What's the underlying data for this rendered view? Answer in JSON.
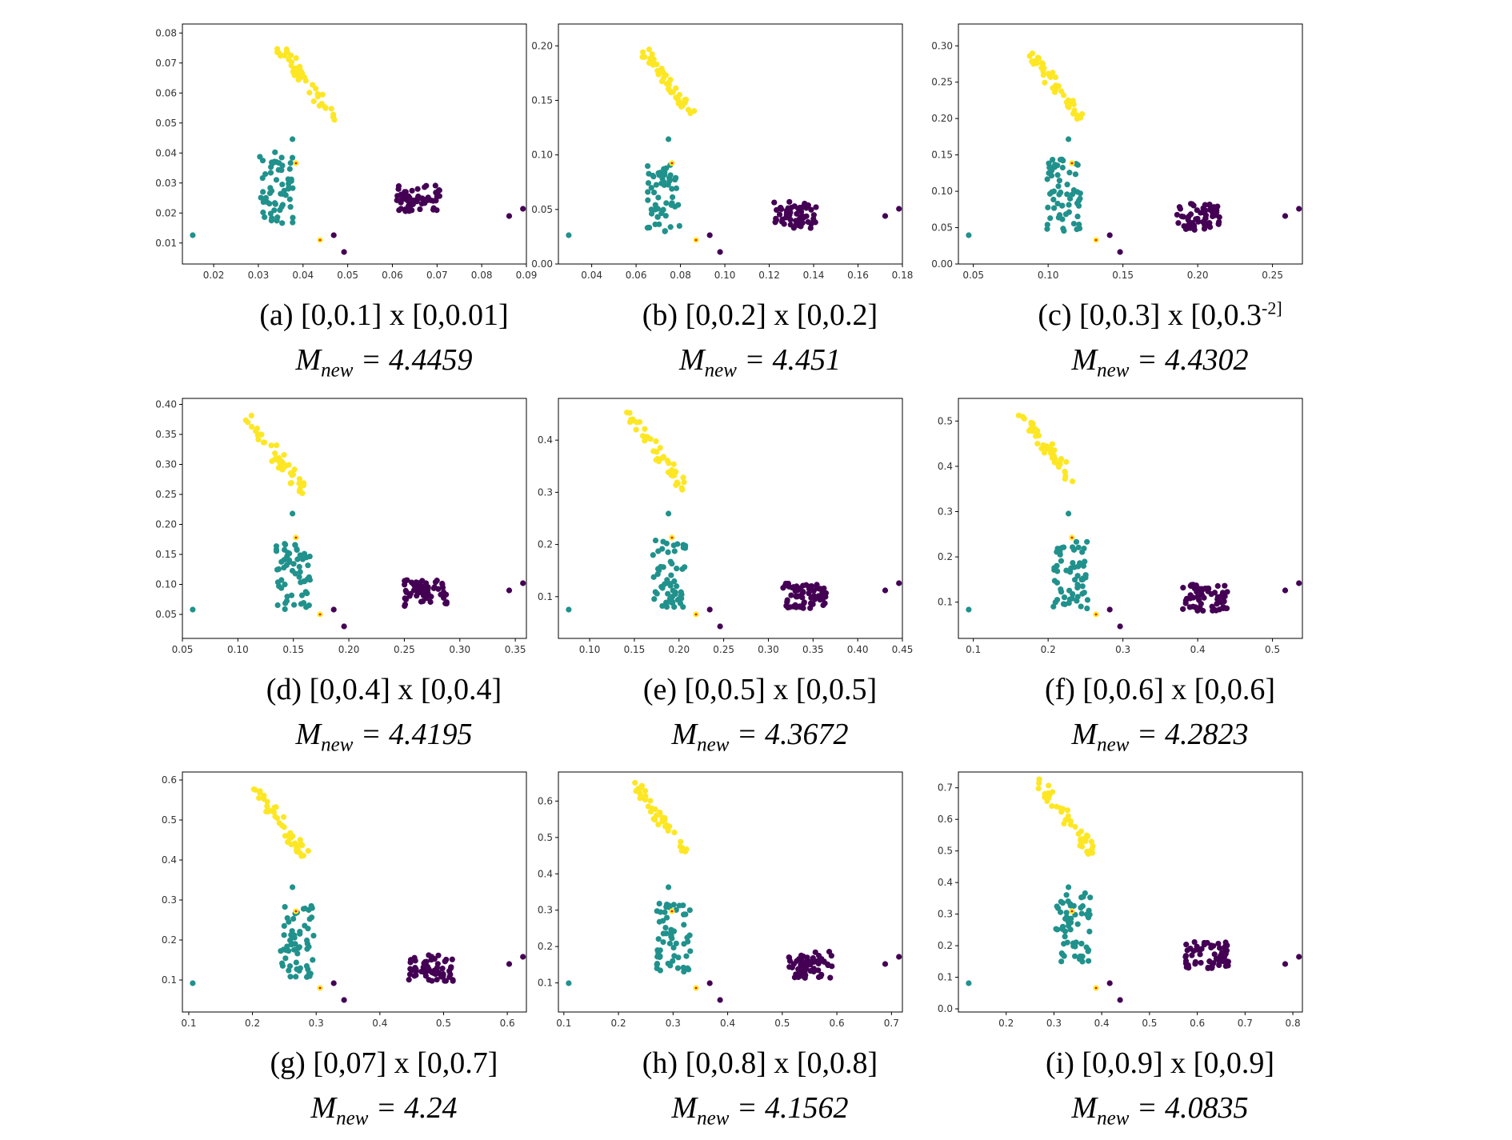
{
  "colors": {
    "yellow": "#fde725",
    "teal": "#21918c",
    "purple": "#440154",
    "red": "#ff0000",
    "frame": "#000000"
  },
  "panels": [
    {
      "label": "(a)",
      "interval": "[0,0.1] x [0,0.01]",
      "superscript": "",
      "m_label": "M",
      "m_sub": "new",
      "m_value": "= 4.4459",
      "xticks": [
        "0.02",
        "0.03",
        "0.04",
        "0.05",
        "0.06",
        "0.07",
        "0.08",
        "0.09"
      ],
      "yticks": [
        "0.01",
        "0.02",
        "0.03",
        "0.04",
        "0.05",
        "0.06",
        "0.07",
        "0.08"
      ]
    },
    {
      "label": "(b)",
      "interval": "[0,0.2] x [0,0.2]",
      "superscript": "",
      "m_label": "M",
      "m_sub": "new",
      "m_value": "= 4.451",
      "xticks": [
        "0.04",
        "0.06",
        "0.08",
        "0.10",
        "0.12",
        "0.14",
        "0.16",
        "0.18"
      ],
      "yticks": [
        "0.00",
        "0.05",
        "0.10",
        "0.15",
        "0.20"
      ]
    },
    {
      "label": "(c)",
      "interval": "[0,0.3] x [0,0.3",
      "superscript": "-2]",
      "m_label": "M",
      "m_sub": "new",
      "m_value": "= 4.4302",
      "xticks": [
        "0.05",
        "0.10",
        "0.15",
        "0.20",
        "0.25"
      ],
      "yticks": [
        "0.00",
        "0.05",
        "0.10",
        "0.15",
        "0.20",
        "0.25",
        "0.30"
      ]
    },
    {
      "label": "(d)",
      "interval": "[0,0.4] x [0,0.4]",
      "superscript": "",
      "m_label": "M",
      "m_sub": "new",
      "m_value": "= 4.4195",
      "xticks": [
        "0.05",
        "0.10",
        "0.15",
        "0.20",
        "0.25",
        "0.30",
        "0.35"
      ],
      "yticks": [
        "0.05",
        "0.10",
        "0.15",
        "0.20",
        "0.25",
        "0.30",
        "0.35",
        "0.40"
      ]
    },
    {
      "label": "(e)",
      "interval": "[0,0.5] x [0,0.5]",
      "superscript": "",
      "m_label": "M",
      "m_sub": "new",
      "m_value": "= 4.3672",
      "xticks": [
        "0.10",
        "0.15",
        "0.20",
        "0.25",
        "0.30",
        "0.35",
        "0.40",
        "0.45"
      ],
      "yticks": [
        "0.1",
        "0.2",
        "0.3",
        "0.4"
      ]
    },
    {
      "label": "(f)",
      "interval": "[0,0.6] x [0,0.6]",
      "superscript": "",
      "m_label": "M",
      "m_sub": "new",
      "m_value": "= 4.2823",
      "xticks": [
        "0.1",
        "0.2",
        "0.3",
        "0.4",
        "0.5"
      ],
      "yticks": [
        "0.1",
        "0.2",
        "0.3",
        "0.4",
        "0.5"
      ]
    },
    {
      "label": "(g)",
      "interval": "[0,07] x [0,0.7]",
      "superscript": "",
      "m_label": "M",
      "m_sub": "new",
      "m_value": "= 4.24",
      "xticks": [
        "0.1",
        "0.2",
        "0.3",
        "0.4",
        "0.5",
        "0.6"
      ],
      "yticks": [
        "0.1",
        "0.2",
        "0.3",
        "0.4",
        "0.5",
        "0.6"
      ]
    },
    {
      "label": "(h)",
      "interval": "[0,0.8] x [0,0.8]",
      "superscript": "",
      "m_label": "M",
      "m_sub": "new",
      "m_value": "= 4.1562",
      "xticks": [
        "0.1",
        "0.2",
        "0.3",
        "0.4",
        "0.5",
        "0.6",
        "0.7"
      ],
      "yticks": [
        "0.1",
        "0.2",
        "0.3",
        "0.4",
        "0.5",
        "0.6"
      ]
    },
    {
      "label": "(i)",
      "interval": "[0,0.9] x [0,0.9]",
      "superscript": "",
      "m_label": "M",
      "m_sub": "new",
      "m_value": "= 4.0835",
      "xticks": [
        "0.2",
        "0.3",
        "0.4",
        "0.5",
        "0.6",
        "0.7",
        "0.8"
      ],
      "yticks": [
        "0.0",
        "0.1",
        "0.2",
        "0.3",
        "0.4",
        "0.5",
        "0.6",
        "0.7"
      ]
    }
  ],
  "chart_data": [
    {
      "type": "scatter",
      "title": "(a) [0,0.1] x [0,0.01]",
      "xlim": [
        0.013,
        0.09
      ],
      "ylim": [
        0.003,
        0.083
      ],
      "series": [
        {
          "name": "cluster-yellow",
          "color": "#fde725",
          "center": [
            0.041,
            0.063
          ]
        },
        {
          "name": "cluster-teal",
          "color": "#21918c",
          "center": [
            0.034,
            0.025
          ]
        },
        {
          "name": "cluster-purple",
          "color": "#440154",
          "center": [
            0.066,
            0.025
          ]
        }
      ]
    },
    {
      "type": "scatter",
      "title": "(b) [0,0.2] x [0,0.2]",
      "xlim": [
        0.025,
        0.18
      ],
      "ylim": [
        0.0,
        0.22
      ],
      "series": [
        {
          "name": "cluster-yellow",
          "color": "#fde725",
          "center": [
            0.075,
            0.165
          ]
        },
        {
          "name": "cluster-teal",
          "color": "#21918c",
          "center": [
            0.072,
            0.05
          ]
        },
        {
          "name": "cluster-purple",
          "color": "#440154",
          "center": [
            0.132,
            0.045
          ]
        }
      ]
    },
    {
      "type": "scatter",
      "title": "(c) [0,0.3] x [0,0.3-2]",
      "xlim": [
        0.04,
        0.27
      ],
      "ylim": [
        0.0,
        0.33
      ],
      "series": [
        {
          "name": "cluster-yellow",
          "color": "#fde725",
          "center": [
            0.105,
            0.245
          ]
        },
        {
          "name": "cluster-teal",
          "color": "#21918c",
          "center": [
            0.11,
            0.08
          ]
        },
        {
          "name": "cluster-purple",
          "color": "#440154",
          "center": [
            0.2,
            0.065
          ]
        }
      ]
    },
    {
      "type": "scatter",
      "title": "(d) [0,0.4] x [0,0.4]",
      "xlim": [
        0.05,
        0.36
      ],
      "ylim": [
        0.01,
        0.41
      ],
      "series": [
        {
          "name": "cluster-yellow",
          "color": "#fde725",
          "center": [
            0.135,
            0.315
          ]
        },
        {
          "name": "cluster-teal",
          "color": "#21918c",
          "center": [
            0.15,
            0.1
          ]
        },
        {
          "name": "cluster-purple",
          "color": "#440154",
          "center": [
            0.27,
            0.085
          ]
        }
      ]
    },
    {
      "type": "scatter",
      "title": "(e) [0,0.5] x [0,0.5]",
      "xlim": [
        0.065,
        0.45
      ],
      "ylim": [
        0.02,
        0.48
      ],
      "series": [
        {
          "name": "cluster-yellow",
          "color": "#fde725",
          "center": [
            0.175,
            0.38
          ]
        },
        {
          "name": "cluster-teal",
          "color": "#21918c",
          "center": [
            0.19,
            0.12
          ]
        },
        {
          "name": "cluster-purple",
          "color": "#440154",
          "center": [
            0.34,
            0.1
          ]
        }
      ]
    },
    {
      "type": "scatter",
      "title": "(f) [0,0.6] x [0,0.6]",
      "xlim": [
        0.08,
        0.54
      ],
      "ylim": [
        0.02,
        0.55
      ],
      "series": [
        {
          "name": "cluster-yellow",
          "color": "#fde725",
          "center": [
            0.2,
            0.44
          ]
        },
        {
          "name": "cluster-teal",
          "color": "#21918c",
          "center": [
            0.23,
            0.14
          ]
        },
        {
          "name": "cluster-purple",
          "color": "#440154",
          "center": [
            0.41,
            0.11
          ]
        }
      ]
    },
    {
      "type": "scatter",
      "title": "(g) [0,07] x [0,0.7]",
      "xlim": [
        0.09,
        0.63
      ],
      "ylim": [
        0.02,
        0.62
      ],
      "series": [
        {
          "name": "cluster-yellow",
          "color": "#fde725",
          "center": [
            0.24,
            0.5
          ]
        },
        {
          "name": "cluster-teal",
          "color": "#21918c",
          "center": [
            0.27,
            0.17
          ]
        },
        {
          "name": "cluster-purple",
          "color": "#440154",
          "center": [
            0.48,
            0.13
          ]
        }
      ]
    },
    {
      "type": "scatter",
      "title": "(h) [0,0.8] x [0,0.8]",
      "xlim": [
        0.09,
        0.72
      ],
      "ylim": [
        0.02,
        0.68
      ],
      "series": [
        {
          "name": "cluster-yellow",
          "color": "#fde725",
          "center": [
            0.28,
            0.55
          ]
        },
        {
          "name": "cluster-teal",
          "color": "#21918c",
          "center": [
            0.3,
            0.19
          ]
        },
        {
          "name": "cluster-purple",
          "color": "#440154",
          "center": [
            0.55,
            0.15
          ]
        }
      ]
    },
    {
      "type": "scatter",
      "title": "(i) [0,0.9] x [0,0.9]",
      "xlim": [
        0.1,
        0.82
      ],
      "ylim": [
        -0.01,
        0.75
      ],
      "series": [
        {
          "name": "cluster-yellow",
          "color": "#fde725",
          "center": [
            0.33,
            0.6
          ]
        },
        {
          "name": "cluster-teal",
          "color": "#21918c",
          "center": [
            0.34,
            0.22
          ]
        },
        {
          "name": "cluster-purple",
          "color": "#440154",
          "center": [
            0.62,
            0.17
          ]
        }
      ]
    }
  ]
}
